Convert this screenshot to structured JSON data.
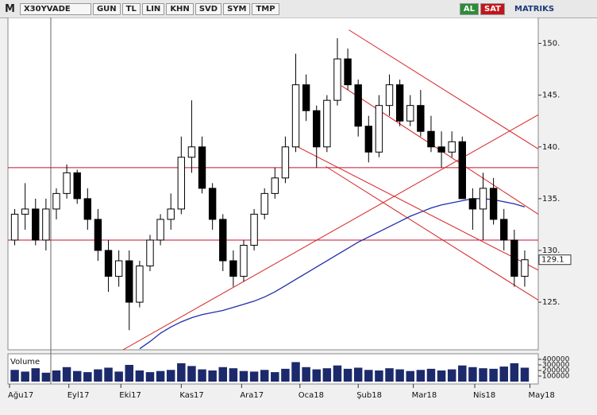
{
  "toolbar": {
    "logo": "M",
    "symbol": "X30YVADE",
    "buttons": [
      "GUN",
      "TL",
      "LIN",
      "KHN",
      "SVD",
      "SYM",
      "TMP"
    ],
    "buy": "AL",
    "sell": "SAT",
    "brand": "MATRIKS"
  },
  "chart_data": {
    "type": "candlestick",
    "xlim": [
      0,
      50.8
    ],
    "xticks": [
      {
        "value": 0,
        "label": "Ağu17"
      },
      {
        "value": 5.7,
        "label": "Eyl17"
      },
      {
        "value": 10.7,
        "label": "Eki17"
      },
      {
        "value": 16.5,
        "label": "Kas17"
      },
      {
        "value": 22.3,
        "label": "Ara17"
      },
      {
        "value": 27.9,
        "label": "Oca18"
      },
      {
        "value": 33.5,
        "label": "Şub18"
      },
      {
        "value": 38.8,
        "label": "Mar18"
      },
      {
        "value": 44.7,
        "label": "Nis18"
      },
      {
        "value": 50,
        "label": "May18"
      }
    ],
    "ylim": [
      120.4,
      152.5
    ],
    "yticks": [
      {
        "value": 125,
        "label": "125."
      },
      {
        "value": 130,
        "label": "130."
      },
      {
        "value": 135,
        "label": "135."
      },
      {
        "value": 140,
        "label": "140."
      },
      {
        "value": 145,
        "label": "145."
      },
      {
        "value": 150,
        "label": "150."
      }
    ],
    "open": [
      131,
      133.5,
      134,
      131,
      134,
      135.5,
      137.5,
      135,
      133,
      130,
      127.5,
      129,
      125,
      128.5,
      131,
      133,
      134,
      139,
      140,
      136,
      133,
      129,
      127.5,
      130.5,
      133.5,
      135.5,
      137,
      140,
      146,
      143.5,
      140,
      144.5,
      148.5,
      146,
      142,
      139.5,
      144,
      146,
      142.5,
      144,
      141.5,
      140,
      139.5,
      140.5,
      135,
      134,
      136,
      133,
      131,
      127.5
    ],
    "high": [
      134,
      136.5,
      135,
      135,
      136,
      138.3,
      137.8,
      136,
      134,
      131,
      130,
      130,
      129,
      131.5,
      133.5,
      135.5,
      141,
      144.5,
      141,
      136.5,
      133.5,
      130,
      131,
      134,
      136,
      138,
      141,
      149,
      147,
      144,
      145,
      150.5,
      149.5,
      146.5,
      143,
      145,
      147,
      146.5,
      145,
      145.5,
      143,
      141.5,
      141.5,
      141,
      136,
      137.5,
      137,
      134,
      132,
      130
    ],
    "low": [
      130.5,
      132,
      130.5,
      130,
      133,
      135,
      134.5,
      132,
      129,
      126,
      126.5,
      122.3,
      124.5,
      128,
      130.5,
      132,
      133.5,
      137.5,
      135.5,
      132,
      128,
      126.5,
      127,
      130,
      133,
      135,
      136.5,
      139.5,
      142.5,
      138,
      139.5,
      144,
      145.5,
      141,
      138.5,
      139,
      143,
      142,
      142,
      141,
      139.5,
      138,
      139,
      135,
      132,
      131,
      132.5,
      130,
      126.5,
      126.5
    ],
    "close": [
      133.5,
      134,
      131,
      134,
      135.5,
      137.5,
      135,
      133,
      130,
      127.5,
      129,
      125,
      128.5,
      131,
      133,
      134,
      139,
      140,
      136,
      133,
      129,
      127.5,
      130.5,
      133.5,
      135.5,
      137,
      140,
      146,
      143.5,
      140,
      144.5,
      148.5,
      146,
      142,
      139.5,
      144,
      146,
      142.5,
      144,
      141.5,
      140,
      139.5,
      140.5,
      135,
      134,
      136,
      133,
      131,
      127.5,
      129.1
    ],
    "ma": {
      "color": "#1f2fa8",
      "values": [
        null,
        null,
        null,
        null,
        null,
        null,
        null,
        null,
        null,
        null,
        null,
        null,
        120.5,
        121.2,
        122,
        122.6,
        123.1,
        123.5,
        123.8,
        124.0,
        124.2,
        124.5,
        124.8,
        125.1,
        125.5,
        126,
        126.6,
        127.2,
        127.8,
        128.4,
        129,
        129.6,
        130.2,
        130.8,
        131.3,
        131.8,
        132.3,
        132.8,
        133.3,
        133.7,
        134.1,
        134.4,
        134.6,
        134.8,
        135,
        135,
        134.9,
        134.7,
        134.5,
        134.2
      ]
    },
    "hlines": {
      "color": "#c8102e",
      "values": [
        138,
        131
      ]
    },
    "trendlines": {
      "color": "#d62020",
      "lines": [
        {
          "x": [
            10.9,
            50.8
          ],
          "y": [
            120.4,
            143.1
          ]
        },
        {
          "x": [
            32.6,
            50.8
          ],
          "y": [
            151.3,
            139.8
          ]
        },
        {
          "x": [
            31.9,
            50.8
          ],
          "y": [
            145.9,
            133.5
          ]
        },
        {
          "x": [
            27.3,
            50.8
          ],
          "y": [
            140.2,
            128.1
          ]
        },
        {
          "x": [
            30.4,
            50.8
          ],
          "y": [
            138.1,
            125.2
          ]
        }
      ]
    },
    "volume": {
      "label": "Volume",
      "color": "#1c2a6b",
      "ylim": [
        0,
        471000
      ],
      "yticks": [
        100000,
        200000,
        300000,
        400000
      ],
      "values": [
        210000,
        180000,
        240000,
        160000,
        200000,
        260000,
        190000,
        170000,
        220000,
        250000,
        180000,
        300000,
        200000,
        170000,
        190000,
        210000,
        330000,
        280000,
        220000,
        200000,
        260000,
        240000,
        190000,
        180000,
        210000,
        170000,
        230000,
        350000,
        260000,
        220000,
        240000,
        290000,
        230000,
        250000,
        210000,
        200000,
        240000,
        220000,
        190000,
        210000,
        230000,
        200000,
        220000,
        290000,
        260000,
        240000,
        230000,
        270000,
        330000,
        250000
      ]
    }
  }
}
